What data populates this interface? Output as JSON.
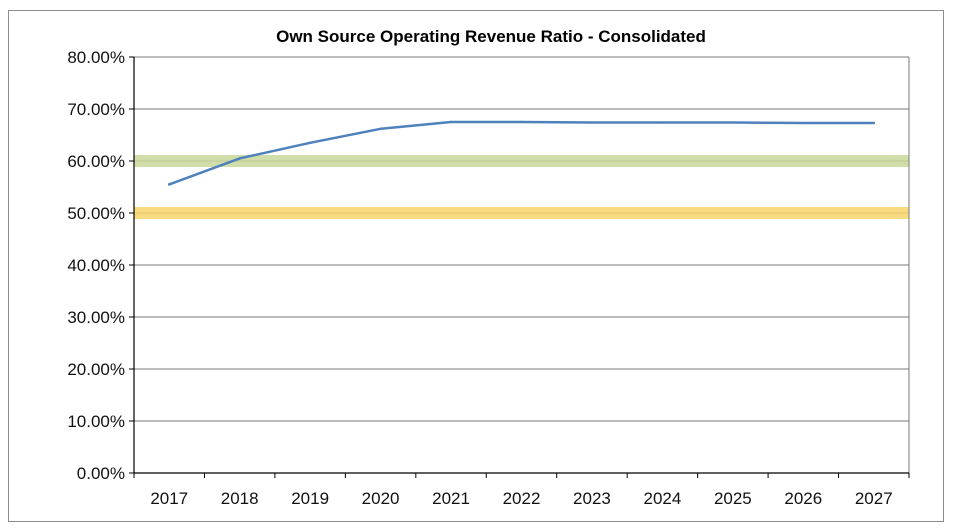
{
  "chart_data": {
    "type": "line",
    "title": "Own Source Operating Revenue Ratio - Consolidated",
    "xlabel": "",
    "ylabel": "",
    "categories": [
      "2017",
      "2018",
      "2019",
      "2020",
      "2021",
      "2022",
      "2023",
      "2024",
      "2025",
      "2026",
      "2027"
    ],
    "series": [
      {
        "values": [
          55.5,
          60.5,
          63.5,
          66.2,
          67.5,
          67.5,
          67.4,
          67.4,
          67.4,
          67.3,
          67.3
        ],
        "color": "#4f81bd"
      }
    ],
    "ylim": [
      0,
      80
    ],
    "yticks": [
      "0.00%",
      "10.00%",
      "20.00%",
      "30.00%",
      "40.00%",
      "50.00%",
      "60.00%",
      "70.00%",
      "80.00%"
    ],
    "ytick_values": [
      0,
      10,
      20,
      30,
      40,
      50,
      60,
      70,
      80
    ],
    "benchmarks": [
      {
        "value": 60,
        "color": "#c9d89a"
      },
      {
        "value": 50,
        "color": "#f7d36a"
      }
    ],
    "grid": true,
    "legend": "none"
  }
}
